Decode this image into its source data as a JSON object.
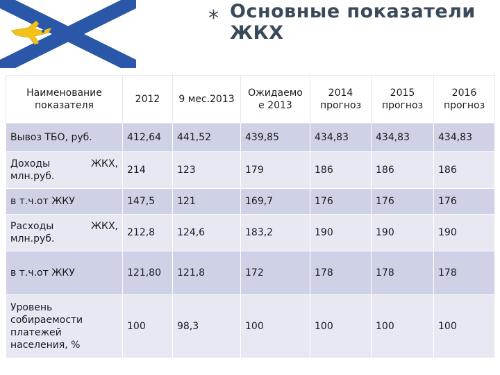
{
  "header": {
    "star": "*",
    "title": "Основные показатели ЖКХ"
  },
  "flag": {
    "colors": {
      "background": "#ffffff",
      "cross": "#2a57a8",
      "emblem": "#f2c21a"
    },
    "icon": "golden-bird-emblem"
  },
  "table": {
    "headers": {
      "name": "Наименование показателя",
      "y2012": "2012",
      "m9_2013": "9 мес.2013",
      "exp2013": "Ожидаемо е 2013",
      "y2014": "2014 прогноз",
      "y2015": "2015 прогноз",
      "y2016": "2016 прогноз"
    },
    "rows": [
      {
        "label": "Вывоз ТБО, руб.",
        "label_a": "",
        "label_b": "",
        "values": [
          "412,64",
          "441,52",
          "439,85",
          "434,83",
          "434,83",
          "434,83"
        ]
      },
      {
        "label": "",
        "label_a": "Доходы",
        "label_b": "ЖКХ,",
        "label_c": "млн.руб.",
        "values": [
          "214",
          "123",
          "179",
          "186",
          "186",
          "186"
        ]
      },
      {
        "label": "в т.ч.от ЖКУ",
        "values": [
          "147,5",
          "121",
          "169,7",
          "176",
          "176",
          "176"
        ]
      },
      {
        "label": "",
        "label_a": "Расходы",
        "label_b": "ЖКХ,",
        "label_c": "млн.руб.",
        "values": [
          "212,8",
          "124,6",
          "183,2",
          "190",
          "190",
          "190"
        ]
      },
      {
        "label": "в т.ч.от ЖКУ",
        "values": [
          "121,80",
          "121,8",
          "172",
          "178",
          "178",
          "178"
        ]
      },
      {
        "label": "Уровень собираемости платежей населения, %",
        "values": [
          "100",
          "98,3",
          "100",
          "100",
          "100",
          "100"
        ]
      }
    ]
  }
}
